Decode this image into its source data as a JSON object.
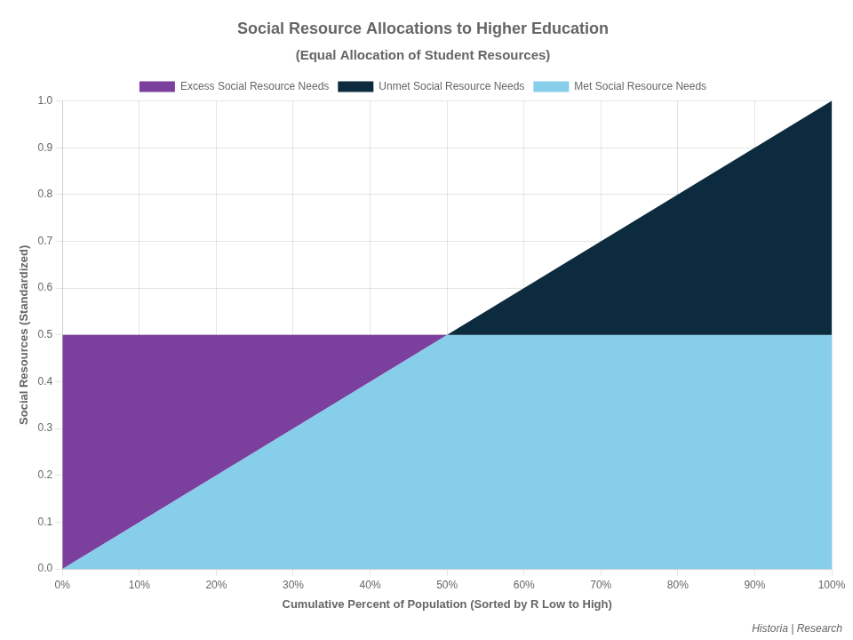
{
  "chart_data": {
    "type": "area",
    "title": "Social Resource Allocations to Higher Education",
    "subtitle": "(Equal Allocation of Student Resources)",
    "x_label": "Cumulative Percent of Population (Sorted by R Low to High)",
    "y_label": "Social Resources (Standardized)",
    "series": [
      {
        "name": "Excess Social Resource Needs",
        "color": "#7B3F9E",
        "x": [
          0,
          0,
          0.5
        ],
        "values": [
          0,
          0.5,
          0.5
        ]
      },
      {
        "name": "Unmet Social Resource Needs",
        "color": "#0D2B3E",
        "x": [
          0.5,
          1,
          1
        ],
        "values": [
          0.5,
          0.5,
          1
        ]
      },
      {
        "name": "Met Social Resource Needs",
        "color": "#87CEEB",
        "x": [
          0,
          1,
          1,
          0.5,
          0
        ],
        "values": [
          0,
          0,
          0.5,
          0.5,
          0
        ]
      }
    ],
    "xlim": [
      0.0,
      1.0
    ],
    "ylim": [
      0.0,
      1.0
    ],
    "xticks": [
      {
        "value": 0,
        "label": "0%"
      },
      {
        "value": 0.1,
        "label": "10%"
      },
      {
        "value": 0.2,
        "label": "20%"
      },
      {
        "value": 0.3,
        "label": "30%"
      },
      {
        "value": 0.4,
        "label": "40%"
      },
      {
        "value": 0.5,
        "label": "50%"
      },
      {
        "value": 0.6,
        "label": "60%"
      },
      {
        "value": 0.7,
        "label": "70%"
      },
      {
        "value": 0.8,
        "label": "80%"
      },
      {
        "value": 0.9,
        "label": "90%"
      },
      {
        "value": 1,
        "label": "100%"
      }
    ],
    "yticks": [
      {
        "value": 0,
        "label": "0.0"
      },
      0.1,
      0.2,
      0.3,
      0.4,
      0.5,
      0.6,
      0.7,
      0.8,
      0.9,
      {
        "value": 1,
        "label": "1.0"
      }
    ],
    "grid": true,
    "legend": "top",
    "annotations": [
      "Historia | Research"
    ]
  }
}
